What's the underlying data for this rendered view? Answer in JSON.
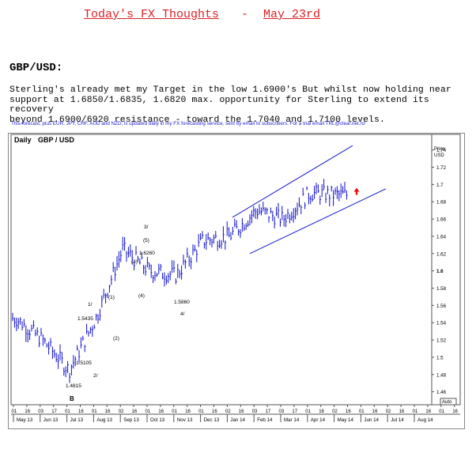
{
  "header": {
    "title": "Today's FX Thoughts",
    "separator": "-",
    "date": "May 23rd"
  },
  "section": {
    "pair": "GBP/USD:",
    "commentary": "Sterling's already met my Target in the low 1.6900's But whilst now holding near\nsupport at 1.6850/1.6835, 1.6820 max. opportunity for Sterling to extend its recovery\nbeyond 1.6900/6920 resistance - toward the 1.7040 and 1.7100 levels.",
    "forecast_note": "This forecast, plus EUR, JPY, CHF, AUD and NZD, is updated daily in my FX forecasting service, sent by email to subscribers. For a trial email TRL@clear.net.nz"
  },
  "colors": {
    "title": "#dd1f26",
    "note": "#1a1ad0",
    "bars": "#1010c8",
    "channel": "#1a1ad0",
    "arrow": "#e01010"
  },
  "chart_data": {
    "type": "line",
    "style": "ohlc-bars",
    "period_label": "Daily",
    "instrument": "GBP / USD",
    "price_axis_title": [
      "Price",
      "USD"
    ],
    "ylim": [
      1.445,
      1.758
    ],
    "yticks": [
      "1.74",
      "1.72",
      "1.7",
      "1.68",
      "1.66",
      "1.64",
      "1.62",
      "1.6",
      "1.58",
      "1.56",
      "1.54",
      "1.52",
      "1.5",
      "1.48",
      "1.46"
    ],
    "auto_label": "Auto",
    "day_ticks": [
      "01",
      "16",
      "03",
      "17",
      "01",
      "16",
      "01",
      "16",
      "02",
      "16",
      "01",
      "16",
      "01",
      "16",
      "01",
      "16",
      "02",
      "16",
      "03",
      "17",
      "03",
      "17",
      "01",
      "16",
      "02",
      "16",
      "01",
      "16",
      "02",
      "16",
      "01",
      "16",
      "01",
      "16",
      "01"
    ],
    "months": [
      "May 13",
      "Jun 13",
      "Jul 13",
      "Aug 13",
      "Sep 13",
      "Oct 13",
      "Nov 13",
      "Dec 13",
      "Jan 14",
      "Feb 14",
      "Mar 14",
      "Apr 14",
      "May 14",
      "Jun 14",
      "Jul 14",
      "Aug 14"
    ],
    "series": [
      {
        "name": "GBP / USD",
        "x": [
          "May 13",
          "Jun 13",
          "Jul 13",
          "Aug 13",
          "Sep 13",
          "Oct 13",
          "Nov 13",
          "Dec 13",
          "Jan 14",
          "Feb 14",
          "Mar 14",
          "Apr 14",
          "May 14"
        ],
        "values": [
          1.545,
          1.52,
          1.485,
          1.545,
          1.625,
          1.6,
          1.595,
          1.635,
          1.64,
          1.67,
          1.66,
          1.69,
          1.688
        ]
      }
    ],
    "annotations": [
      {
        "text": "1.4815",
        "x": "Jul 13",
        "y": 1.4815
      },
      {
        "text": "B",
        "x": "Jul 13",
        "y": 1.4815
      },
      {
        "text": "1.5105",
        "x": "Jul 13",
        "y": 1.5105
      },
      {
        "text": "2/",
        "x": "Jul 13",
        "y": 1.5105
      },
      {
        "text": "1/",
        "x": "Jul 13",
        "y": 1.5435
      },
      {
        "text": "1.5435",
        "x": "Jul 13",
        "y": 1.5435
      },
      {
        "text": "(1)",
        "x": "Aug 13",
        "y": 1.58
      },
      {
        "text": "(2)",
        "x": "Aug 13",
        "y": 1.53
      },
      {
        "text": "3/",
        "x": "Sep 13",
        "y": 1.626
      },
      {
        "text": "(5)",
        "x": "Sep 13",
        "y": 1.626
      },
      {
        "text": "1.6260",
        "x": "Sep 13",
        "y": 1.626
      },
      {
        "text": "(3)",
        "x": "Sep 13",
        "y": 1.62
      },
      {
        "text": "(4)",
        "x": "Sep 13",
        "y": 1.59
      },
      {
        "text": "1.5860",
        "x": "Oct 13",
        "y": 1.586
      },
      {
        "text": "4/",
        "x": "Oct 13",
        "y": 1.586
      }
    ]
  }
}
